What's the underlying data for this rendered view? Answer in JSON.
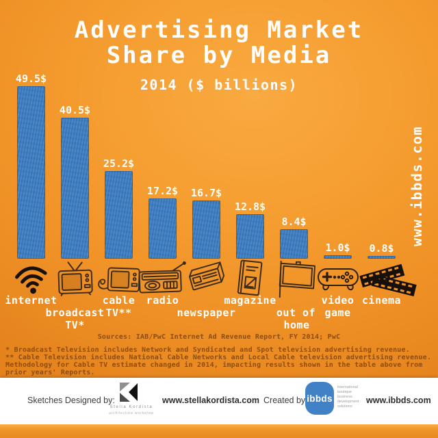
{
  "title": {
    "line1": "Advertising Market",
    "line2": "Share by Media",
    "subtitle": "2014 ($ billions)"
  },
  "watermark_right": "www.ibbds.com",
  "chart_data": {
    "type": "bar",
    "title": "Advertising Market Share by Media",
    "subtitle": "2014 ($ billions)",
    "unit": "USD billions",
    "categories": [
      "internet",
      "broadcast TV*",
      "cable TV**",
      "radio",
      "newspaper",
      "magazine",
      "out of home",
      "video game",
      "cinema"
    ],
    "values": [
      49.5,
      40.5,
      25.2,
      17.2,
      16.7,
      12.8,
      8.4,
      1.0,
      0.8
    ],
    "value_labels": [
      "49.5$",
      "40.5$",
      "25.2$",
      "17.2$",
      "16.7$",
      "12.8$",
      "8.4$",
      "1.0$",
      "0.8$"
    ],
    "bar_color": "#3d7ec2",
    "ylim": [
      0,
      50
    ],
    "grid": false,
    "legend": "none"
  },
  "bars": [
    {
      "icon": "wifi-icon",
      "label_lines": [
        {
          "text": "internet",
          "row": 0
        }
      ]
    },
    {
      "icon": "broadcast-tv-icon",
      "label_lines": [
        {
          "text": "broadcast",
          "row": 1
        },
        {
          "text": "TV*",
          "row": 2
        }
      ]
    },
    {
      "icon": "cable-tv-icon",
      "label_lines": [
        {
          "text": "cable",
          "row": 0
        },
        {
          "text": "TV**",
          "row": 1
        }
      ]
    },
    {
      "icon": "radio-icon",
      "label_lines": [
        {
          "text": "radio",
          "row": 0
        }
      ]
    },
    {
      "icon": "newspaper-icon",
      "label_lines": [
        {
          "text": "newspaper",
          "row": 1
        }
      ]
    },
    {
      "icon": "magazine-icon",
      "label_lines": [
        {
          "text": "magazine",
          "row": 0
        }
      ]
    },
    {
      "icon": "billboard-icon",
      "label_lines": [
        {
          "text": "out of",
          "row": 1,
          "dx": 3
        },
        {
          "text": "home",
          "row": 2,
          "dx": 4
        }
      ]
    },
    {
      "icon": "gamepad-icon",
      "label_lines": [
        {
          "text": "video",
          "row": 0
        },
        {
          "text": "game",
          "row": 1
        }
      ]
    },
    {
      "icon": "film-icon",
      "label_lines": [
        {
          "text": "cinema",
          "row": 0
        }
      ]
    }
  ],
  "sources": "Sources: IAB/PwC Internet Ad Revenue Report, FY 2014; PwC",
  "footnote_lines": [
    "* Broadcast Television includes Network and Syndicated and Spot television advertising revenue.",
    "** Cable Television includes National Cable Networks and Local Cable television advertising revenue.",
    "Methodology for Cable TV estimate changed in 2014, impacting results shown in the table above from",
    "prior years' Reports."
  ],
  "footer": {
    "sketches_label": "Sketches Designed by:",
    "designer_name": "Stella Kordista",
    "designer_subtitle": "architecture workshop",
    "designer_site": "www.stellakordista.com",
    "created_label": "Created by:",
    "ibbds_logo_text": "ibbds",
    "ibbds_tagline_lines": [
      "international",
      "boutique",
      "business",
      "development",
      "solutions"
    ],
    "ibbds_site": "www.ibbds.com"
  },
  "colors": {
    "background": "#f2962a",
    "bar": "#3d7ec2",
    "heading_text": "#ffffff",
    "footnote_text": "#8d4c10",
    "ibbds_blue": "#4181c6"
  }
}
